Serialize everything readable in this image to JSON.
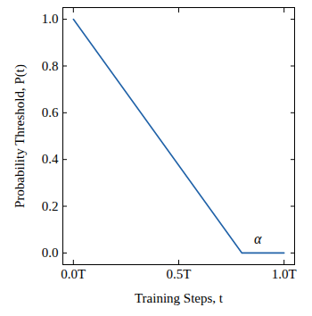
{
  "chart_data": {
    "type": "line",
    "x_label": "Training Steps, t",
    "y_label": "Probability Threshold, P(t)",
    "x": [
      0,
      0.8,
      1.0
    ],
    "series": [
      {
        "values": [
          1.0,
          0.0,
          0.0
        ],
        "color": "#2062a8"
      }
    ],
    "xlim": [
      -0.05,
      1.05
    ],
    "ylim": [
      -0.05,
      1.05
    ],
    "xticks": [
      {
        "value": 0,
        "label": "0.0T"
      },
      {
        "value": 0.5,
        "label": "0.5T"
      },
      {
        "value": 1.0,
        "label": "1.0T"
      }
    ],
    "yticks": [
      {
        "value": 0,
        "label": "0.0"
      },
      0.2,
      0.4,
      0.6,
      0.8,
      {
        "value": 1.0,
        "label": "1.0"
      }
    ],
    "annotations": [
      {
        "text": "α",
        "x": 0.875,
        "y": 0.03
      }
    ],
    "grid": false
  }
}
